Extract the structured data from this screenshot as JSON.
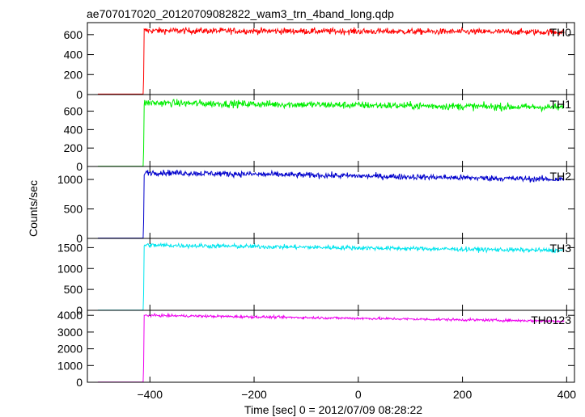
{
  "chart_data": {
    "type": "line",
    "title": "ae707017020_20120709082822_wam3_trn_4band_long.qdp",
    "xlabel": "Time [sec] 0 = 2012/07/09 08:28:22",
    "ylabel": "Counts/sec",
    "xlim": [
      -520,
      415
    ],
    "x_ticks": [
      -400,
      -200,
      0,
      200,
      400
    ],
    "x_tick_labels": [
      "−400",
      "−200",
      "0",
      "200",
      "400"
    ],
    "grid": false,
    "series": [
      {
        "name": "TH0",
        "color": "#ff0000",
        "ylim": [
          0,
          720
        ],
        "y_ticks": [
          0,
          200,
          400,
          600
        ],
        "x_start": -500,
        "onset_x": -411,
        "pre_level": 5,
        "post_start": 640,
        "post_end": 625,
        "noise": 22
      },
      {
        "name": "TH1",
        "color": "#00ee00",
        "ylim": [
          0,
          780
        ],
        "y_ticks": [
          0,
          200,
          400,
          600
        ],
        "x_start": -500,
        "onset_x": -411,
        "pre_level": 3,
        "post_start": 690,
        "post_end": 640,
        "noise": 28
      },
      {
        "name": "TH2",
        "color": "#0000cc",
        "ylim": [
          0,
          1220
        ],
        "y_ticks": [
          0,
          500,
          1000
        ],
        "x_start": -500,
        "onset_x": -411,
        "pre_level": 5,
        "post_start": 1120,
        "post_end": 1000,
        "noise": 35
      },
      {
        "name": "TH3",
        "color": "#00e5ee",
        "ylim": [
          0,
          1720
        ],
        "y_ticks": [
          0,
          500,
          1000,
          1500
        ],
        "x_start": -500,
        "onset_x": -411,
        "pre_level": 5,
        "post_start": 1560,
        "post_end": 1430,
        "noise": 38
      },
      {
        "name": "TH0123",
        "color": "#ee00ee",
        "ylim": [
          0,
          4300
        ],
        "y_ticks": [
          0,
          1000,
          2000,
          3000,
          4000
        ],
        "x_start": -500,
        "onset_x": -411,
        "pre_level": 15,
        "post_start": 4000,
        "post_end": 3650,
        "noise": 55
      }
    ]
  }
}
